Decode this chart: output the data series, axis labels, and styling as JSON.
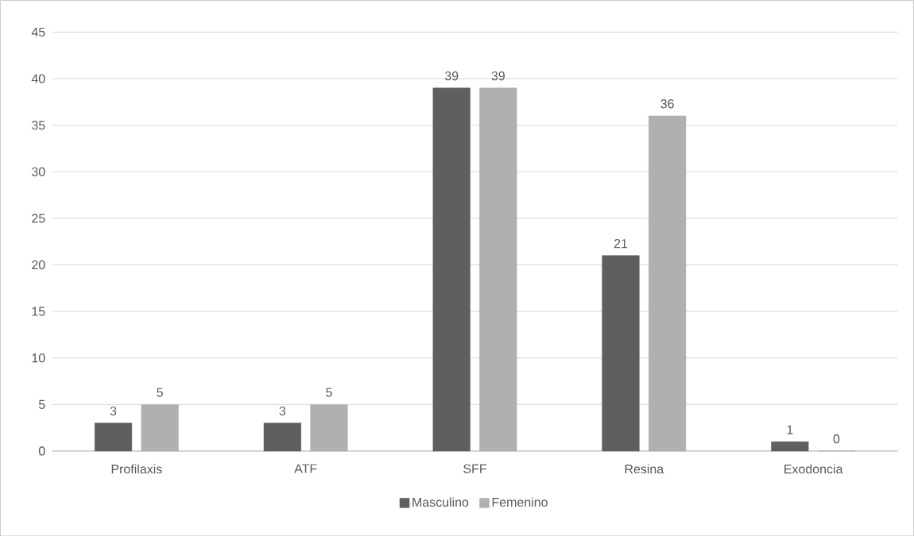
{
  "chart_data": {
    "type": "bar",
    "categories": [
      "Profilaxis",
      "ATF",
      "SFF",
      "Resina",
      "Exodoncia"
    ],
    "series": [
      {
        "name": "Masculino",
        "color": "#5f5f5f",
        "values": [
          3,
          3,
          39,
          21,
          1
        ]
      },
      {
        "name": "Femenino",
        "color": "#b0b0b0",
        "values": [
          5,
          5,
          39,
          36,
          0
        ]
      }
    ],
    "ylim": [
      0,
      45
    ],
    "yticks": [
      0,
      5,
      10,
      15,
      20,
      25,
      30,
      35,
      40,
      45
    ],
    "grid": "y",
    "legend": "bottom",
    "data_labels": true
  }
}
